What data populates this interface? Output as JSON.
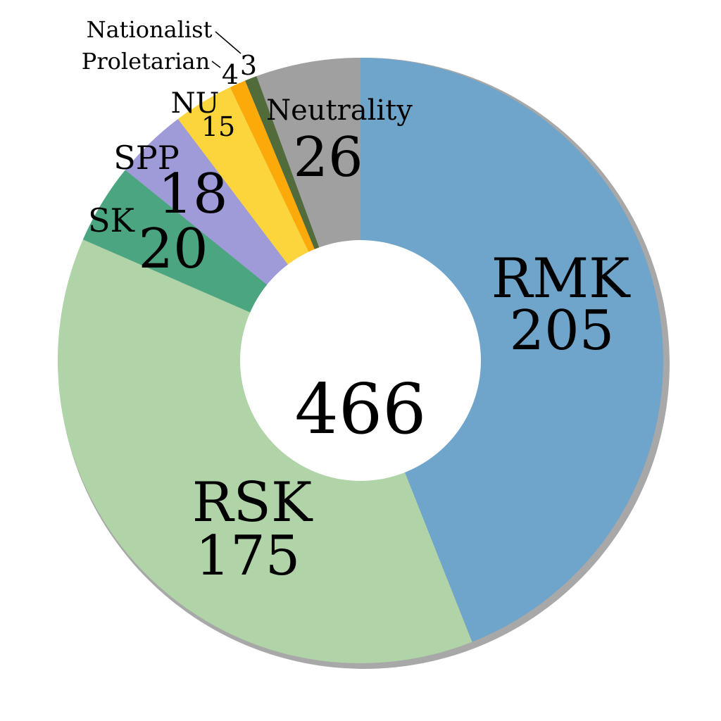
{
  "chart_data": {
    "type": "pie",
    "donut": true,
    "total": "466",
    "slices": [
      {
        "name": "RMK",
        "value": 205,
        "value_label": "205",
        "color": "#6fa4cb"
      },
      {
        "name": "RSK",
        "value": 175,
        "value_label": "175",
        "color": "#b0d3a7"
      },
      {
        "name": "SK",
        "value": 20,
        "value_label": "20",
        "color": "#4aa580"
      },
      {
        "name": "SPP",
        "value": 18,
        "value_label": "18",
        "color": "#9f9bd8"
      },
      {
        "name": "NU",
        "value": 15,
        "value_label": "15",
        "color": "#fcd53c"
      },
      {
        "name": "Proletarian",
        "value": 4,
        "value_label": "4",
        "color": "#fcaa0a"
      },
      {
        "name": "Nationalist",
        "value": 3,
        "value_label": "3",
        "color": "#526b3a"
      },
      {
        "name": "Neutrality",
        "value": 26,
        "value_label": "26",
        "color": "#a0a0a0"
      }
    ],
    "shadow_color": "#a8a8a8"
  }
}
